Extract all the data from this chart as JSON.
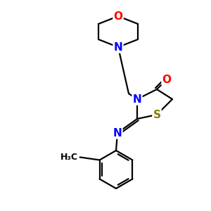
{
  "background": "#ffffff",
  "bond_color": "#000000",
  "atom_colors": {
    "N": "#0000ff",
    "O": "#ff0000",
    "S": "#808000",
    "C": "#000000"
  },
  "figsize": [
    3.0,
    3.0
  ],
  "dpi": 100,
  "lw": 1.6
}
